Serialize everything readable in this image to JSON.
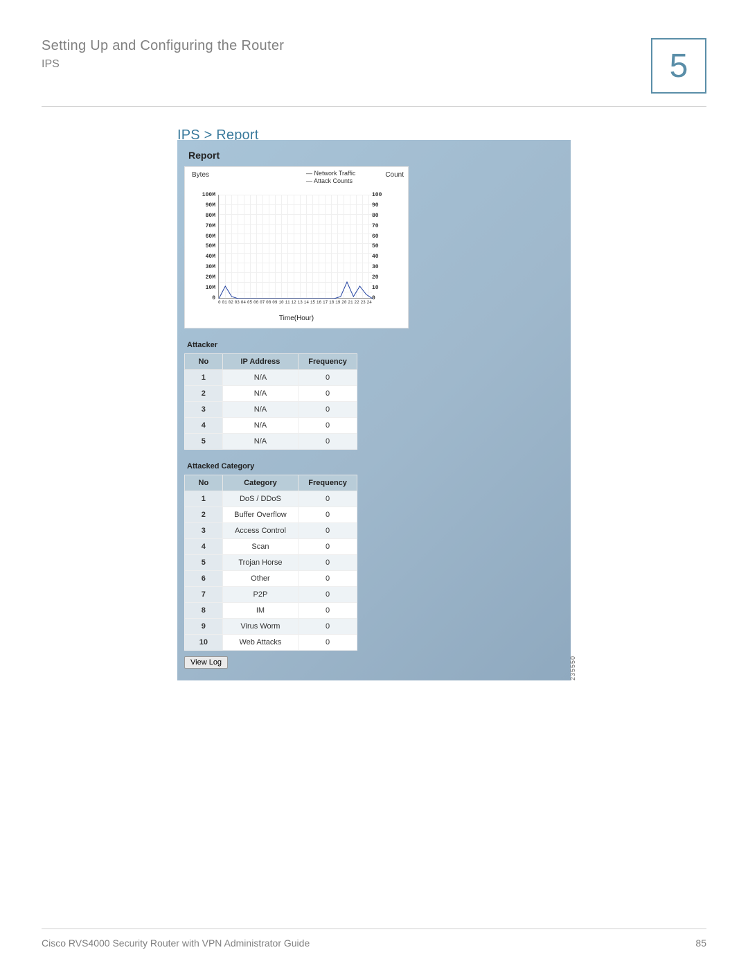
{
  "header": {
    "title": "Setting Up and Configuring the Router",
    "subtitle": "IPS",
    "chapter_number": "5"
  },
  "section_heading": "IPS > Report",
  "report": {
    "title": "Report",
    "chart": {
      "type": "line",
      "y_left_label": "Bytes",
      "y_right_label": "Count",
      "x_label": "Time(Hour)",
      "legend": [
        "— Network Traffic",
        "— Attack Counts"
      ],
      "legend_colors": [
        "#2040a0",
        "#2040a0"
      ],
      "y_left_ticks": [
        "100M",
        "90M",
        "80M",
        "70M",
        "60M",
        "50M",
        "40M",
        "30M",
        "20M",
        "10M",
        "0"
      ],
      "y_right_ticks": [
        "100",
        "90",
        "80",
        "70",
        "60",
        "50",
        "40",
        "30",
        "20",
        "10",
        "0"
      ],
      "x_ticks": [
        "0",
        "01",
        "02",
        "03",
        "04",
        "05",
        "06",
        "07",
        "08",
        "09",
        "10",
        "11",
        "12",
        "13",
        "14",
        "15",
        "16",
        "17",
        "18",
        "19",
        "20",
        "21",
        "22",
        "23",
        "24"
      ],
      "ylim_left": [
        0,
        100
      ],
      "ylim_right": [
        0,
        100
      ],
      "series": [
        {
          "name": "Network Traffic",
          "color": "#2040a0",
          "points": [
            [
              0,
              0
            ],
            [
              1,
              12
            ],
            [
              2,
              2
            ],
            [
              3,
              0
            ],
            [
              4,
              0
            ],
            [
              5,
              0
            ],
            [
              6,
              0
            ],
            [
              7,
              0
            ],
            [
              8,
              0
            ],
            [
              9,
              0
            ],
            [
              10,
              0
            ],
            [
              11,
              0
            ],
            [
              12,
              0
            ],
            [
              13,
              0
            ],
            [
              14,
              0
            ],
            [
              15,
              0
            ],
            [
              16,
              0
            ],
            [
              17,
              0
            ],
            [
              18,
              0
            ],
            [
              19,
              2
            ],
            [
              20,
              16
            ],
            [
              21,
              2
            ],
            [
              22,
              12
            ],
            [
              23,
              4
            ],
            [
              24,
              0
            ]
          ]
        }
      ],
      "background_color": "#ffffff",
      "grid_color": "#f0f0f0",
      "line_width": 1
    },
    "attacker": {
      "label": "Attacker",
      "columns": [
        "No",
        "IP Address",
        "Frequency"
      ],
      "rows": [
        [
          "1",
          "N/A",
          "0"
        ],
        [
          "2",
          "N/A",
          "0"
        ],
        [
          "3",
          "N/A",
          "0"
        ],
        [
          "4",
          "N/A",
          "0"
        ],
        [
          "5",
          "N/A",
          "0"
        ]
      ]
    },
    "attacked_category": {
      "label": "Attacked Category",
      "columns": [
        "No",
        "Category",
        "Frequency"
      ],
      "rows": [
        [
          "1",
          "DoS / DDoS",
          "0"
        ],
        [
          "2",
          "Buffer Overflow",
          "0"
        ],
        [
          "3",
          "Access Control",
          "0"
        ],
        [
          "4",
          "Scan",
          "0"
        ],
        [
          "5",
          "Trojan Horse",
          "0"
        ],
        [
          "6",
          "Other",
          "0"
        ],
        [
          "7",
          "P2P",
          "0"
        ],
        [
          "8",
          "IM",
          "0"
        ],
        [
          "9",
          "Virus Worm",
          "0"
        ],
        [
          "10",
          "Web Attacks",
          "0"
        ]
      ]
    },
    "view_log_label": "View Log",
    "image_id": "235550"
  },
  "footer": {
    "doc_title": "Cisco RVS4000 Security Router with VPN Administrator Guide",
    "page_number": "85"
  },
  "colors": {
    "accent": "#5a8ea8",
    "link": "#3a7a9c",
    "text_muted": "#808080",
    "panel_bg_start": "#a8c4d8",
    "panel_bg_end": "#8fa9bf",
    "table_header_bg": "#b8ccd8"
  }
}
